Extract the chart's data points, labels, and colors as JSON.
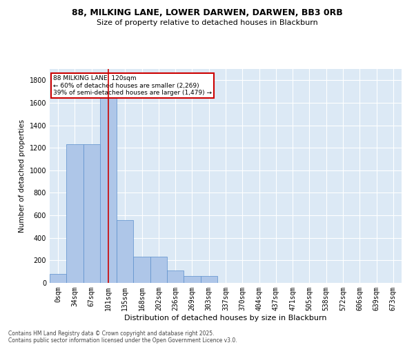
{
  "title1": "88, MILKING LANE, LOWER DARWEN, DARWEN, BB3 0RB",
  "title2": "Size of property relative to detached houses in Blackburn",
  "xlabel": "Distribution of detached houses by size in Blackburn",
  "ylabel": "Number of detached properties",
  "bar_labels": [
    "0sqm",
    "34sqm",
    "67sqm",
    "101sqm",
    "135sqm",
    "168sqm",
    "202sqm",
    "236sqm",
    "269sqm",
    "303sqm",
    "337sqm",
    "370sqm",
    "404sqm",
    "437sqm",
    "471sqm",
    "505sqm",
    "538sqm",
    "572sqm",
    "606sqm",
    "639sqm",
    "673sqm"
  ],
  "bar_heights": [
    80,
    1230,
    1230,
    1640,
    560,
    230,
    230,
    110,
    60,
    60,
    0,
    0,
    0,
    0,
    0,
    0,
    0,
    0,
    0,
    0,
    0
  ],
  "bar_color": "#aec6e8",
  "bar_edge_color": "#5b8fcc",
  "bg_color": "#dce9f5",
  "grid_color": "#ffffff",
  "vline_x": 3,
  "vline_color": "#cc0000",
  "annotation_text": "88 MILKING LANE: 120sqm\n← 60% of detached houses are smaller (2,269)\n39% of semi-detached houses are larger (1,479) →",
  "annotation_box_color": "#cc0000",
  "ylim": [
    0,
    1900
  ],
  "yticks": [
    0,
    200,
    400,
    600,
    800,
    1000,
    1200,
    1400,
    1600,
    1800
  ],
  "footer1": "Contains HM Land Registry data © Crown copyright and database right 2025.",
  "footer2": "Contains public sector information licensed under the Open Government Licence v3.0."
}
